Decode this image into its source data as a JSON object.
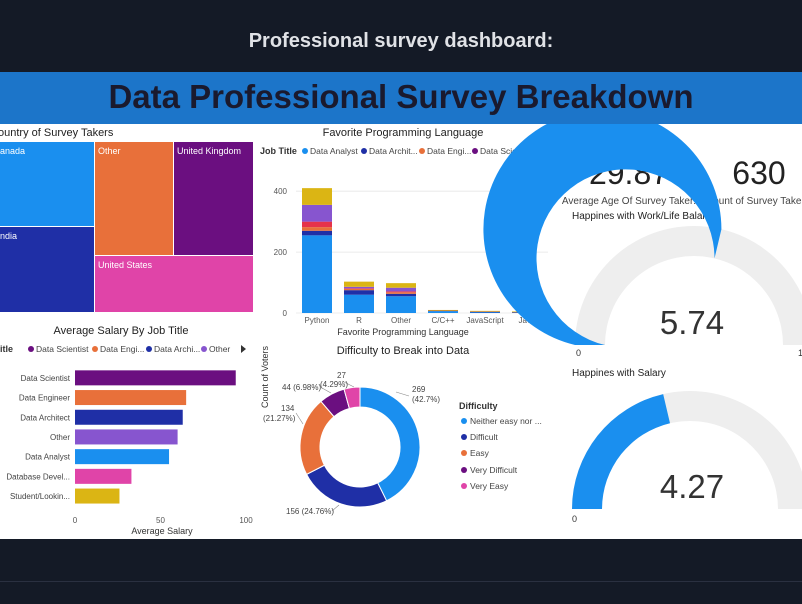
{
  "page": {
    "header_title": "Professional survey dashboard:",
    "banner_title": "Data Professional Survey Breakdown"
  },
  "kpis": {
    "avg_age": {
      "value": "29.87",
      "label": "Average Age Of Survey Taker:"
    },
    "count": {
      "value": "630",
      "label": "Count of Survey Take"
    }
  },
  "legend_nav_icon": "triangle-right-icon",
  "chart_data": [
    {
      "type": "treemap",
      "title": "ountry of Survey Takers",
      "categories": [
        "Other",
        "anada",
        "ndia",
        "United Kingdom",
        "United States"
      ],
      "colors": [
        "#e8703a",
        "#1a8fef",
        "#1f2fa6",
        "#6b0f80",
        "#e044a8"
      ]
    },
    {
      "type": "bar",
      "stacked": true,
      "title": "Favorite Programming Language",
      "legend_label": "Job Title",
      "legend_items": [
        {
          "name": "Data Analyst",
          "color": "#1a8fef"
        },
        {
          "name": "Data Archit...",
          "color": "#1f2fa6"
        },
        {
          "name": "Data Engi...",
          "color": "#e8703a"
        },
        {
          "name": "Data Scie...",
          "color": "#6b0f80"
        }
      ],
      "xlabel": "Favorite Programming Language",
      "ylabel": "Count of Voters",
      "categories": [
        "Python",
        "R",
        "Other",
        "C/C++",
        "JavaScript",
        "Java"
      ],
      "yticks": [
        0,
        200,
        400
      ],
      "ylim": [
        0,
        440
      ],
      "series": [
        {
          "color": "#1a8fef",
          "values": [
            255,
            60,
            55,
            6,
            3,
            2
          ]
        },
        {
          "color": "#1f2fa6",
          "values": [
            15,
            15,
            8,
            2,
            1,
            1
          ]
        },
        {
          "color": "#e8703a",
          "values": [
            12,
            4,
            5,
            1,
            2,
            1
          ]
        },
        {
          "color": "#e6324a",
          "values": [
            18,
            2,
            3,
            0,
            0,
            0
          ]
        },
        {
          "color": "#8755cf",
          "values": [
            55,
            5,
            12,
            0,
            0,
            0
          ]
        },
        {
          "color": "#dbb514",
          "values": [
            55,
            17,
            15,
            1,
            1,
            1
          ]
        }
      ]
    },
    {
      "type": "bar",
      "orientation": "horizontal",
      "title": "Average Salary By Job Title",
      "legend_label": "itle",
      "legend_items": [
        {
          "name": "Data Scientist",
          "color": "#6b0f80"
        },
        {
          "name": "Data Engi...",
          "color": "#e8703a"
        },
        {
          "name": "Data Archi...",
          "color": "#1f2fa6"
        },
        {
          "name": "Other",
          "color": "#8755cf"
        }
      ],
      "xlabel": "Average Salary",
      "xticks": [
        0,
        50,
        100
      ],
      "xlim": [
        0,
        100
      ],
      "categories": [
        "Data Scientist",
        "Data Engineer",
        "Data Architect",
        "Other",
        "Data Analyst",
        "Database Devel...",
        "Student/Lookin..."
      ],
      "values": [
        94,
        65,
        63,
        60,
        55,
        33,
        26
      ],
      "colors": [
        "#6b0f80",
        "#e8703a",
        "#1f2fa6",
        "#8755cf",
        "#1a8fef",
        "#e044a8",
        "#dbb514"
      ]
    },
    {
      "type": "pie",
      "donut": true,
      "title": "Difficulty to Break into Data",
      "legend_title": "Difficulty",
      "slices": [
        {
          "name": "Neither easy nor ...",
          "value": 269,
          "label": "269",
          "pct": "(42.7%)",
          "color": "#1a8fef"
        },
        {
          "name": "Difficult",
          "value": 156,
          "label": "156 (24.76%)",
          "color": "#1f2fa6"
        },
        {
          "name": "Easy",
          "value": 134,
          "label": "134",
          "pct": "(21.27%)",
          "color": "#e8703a"
        },
        {
          "name": "Very Difficult",
          "value": 44,
          "label": "44 (6.98%)",
          "color": "#6b0f80"
        },
        {
          "name": "Very Easy",
          "value": 27,
          "label": "27",
          "pct": "(4.29%)",
          "color": "#e044a8"
        }
      ]
    },
    {
      "type": "gauge",
      "title": "Happines with Work/Life Balance",
      "value": 5.74,
      "display_value": "5.74",
      "min": 0,
      "max": 10,
      "min_label": "0",
      "max_label": "1",
      "fill_color": "#1a8fef",
      "track_color": "#eeeeee"
    },
    {
      "type": "gauge",
      "title": "Happines with Salary",
      "value": 4.27,
      "display_value": "4.27",
      "min": 0,
      "max": 10,
      "min_label": "0",
      "fill_color": "#1a8fef",
      "track_color": "#eeeeee"
    }
  ]
}
